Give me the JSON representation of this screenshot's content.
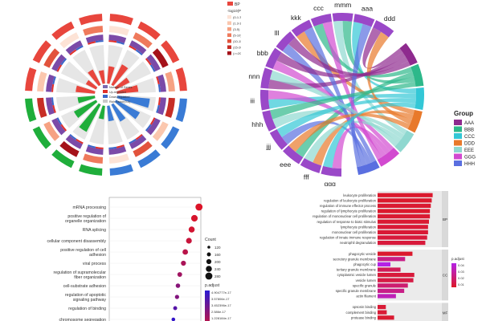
{
  "chart_data": [
    {
      "type": "circos",
      "legend_top": {
        "items": [
          "BP"
        ],
        "colors": [
          "#e8463d"
        ]
      },
      "pvalue_legend": {
        "title": "-log10(Pvalue)",
        "items": [
          "(0-1.3)",
          "(1.3-3)",
          "(3-5)",
          "(5-10)",
          "(10-15)",
          "(15-20)",
          "(>=20)"
        ],
        "colors": [
          "#fde3d6",
          "#fbc7ae",
          "#f6a283",
          "#ef7a5c",
          "#e2533c",
          "#c72e26",
          "#a5121a"
        ]
      },
      "center_legend": {
        "items": [
          "Number of Genes",
          "Up-regulated",
          "Down-regulated",
          "Rich Factor(0-1)"
        ],
        "colors": [
          "#7b68b0",
          "#e0302a",
          "#3a66c8",
          "#c9c9c9"
        ]
      },
      "sectors": [
        {
          "group": "BP",
          "gene_ratio": 0.45
        },
        {
          "group": "BP",
          "gene_ratio": 0.6
        },
        {
          "group": "BP",
          "gene_ratio": 0.4
        },
        {
          "group": "BP",
          "gene_ratio": 0.55
        },
        {
          "group": "CC",
          "gene_ratio": 0.85
        },
        {
          "group": "CC",
          "gene_ratio": 0.7
        },
        {
          "group": "CC",
          "gene_ratio": 0.5
        },
        {
          "group": "CC",
          "gene_ratio": 0.4
        },
        {
          "group": "MF",
          "gene_ratio": 0.35
        },
        {
          "group": "MF",
          "gene_ratio": 0.8
        },
        {
          "group": "MF",
          "gene_ratio": 0.65
        },
        {
          "group": "MF",
          "gene_ratio": 0.45
        },
        {
          "group": "BP",
          "gene_ratio": 0.5
        },
        {
          "group": "BP",
          "gene_ratio": 0.3
        },
        {
          "group": "BP",
          "gene_ratio": 0.45
        },
        {
          "group": "BP",
          "gene_ratio": 0.35
        }
      ],
      "group_colors": {
        "BP": "#e8463d",
        "CC": "#3a7bd5",
        "MF": "#1fae3b"
      }
    },
    {
      "type": "chord",
      "legend_title": "Group",
      "labels": [
        "ddd",
        "aaa",
        "mmm",
        "ccc",
        "kkk",
        "lll",
        "bbb",
        "nnn",
        "iii",
        "hhh",
        "jjj",
        "eee",
        "fff",
        "ggg"
      ],
      "groups": [
        "AAA",
        "BBB",
        "CCC",
        "DDD",
        "EEE",
        "GGG",
        "HHH"
      ],
      "group_colors": [
        "#8e2a8e",
        "#2db88a",
        "#33c7d6",
        "#e8792b",
        "#8fd8d0",
        "#d24ad0",
        "#5a6fe0"
      ],
      "group_sizes": [
        1,
        1,
        1,
        1,
        1,
        1,
        1
      ],
      "label_sizes": [
        1,
        1,
        1,
        1,
        1,
        1,
        1,
        1,
        1,
        1,
        1,
        1,
        1,
        1
      ],
      "ribbons": [
        [
          0,
          0
        ],
        [
          1,
          2
        ],
        [
          2,
          4
        ],
        [
          3,
          1
        ],
        [
          4,
          3
        ],
        [
          5,
          6
        ],
        [
          6,
          5
        ],
        [
          7,
          0
        ],
        [
          8,
          2
        ],
        [
          9,
          4
        ],
        [
          10,
          6
        ],
        [
          11,
          1
        ],
        [
          12,
          3
        ],
        [
          13,
          5
        ],
        [
          0,
          3
        ],
        [
          2,
          1
        ],
        [
          4,
          6
        ],
        [
          6,
          0
        ],
        [
          8,
          5
        ],
        [
          10,
          2
        ],
        [
          12,
          4
        ],
        [
          1,
          6
        ],
        [
          3,
          5
        ],
        [
          5,
          0
        ],
        [
          7,
          4
        ],
        [
          9,
          1
        ],
        [
          11,
          3
        ],
        [
          13,
          2
        ]
      ]
    },
    {
      "type": "scatter",
      "terms": [
        "mRNA processing",
        "positive regulation of organelle organization",
        "RNA splicing",
        "cellular component disassembly",
        "positive regulation of cell adhesion",
        "viral process",
        "regulation of supramolecular fiber organization",
        "cell-substrate adhesion",
        "regulation of apoptotic signaling pathway",
        "regulation of binding",
        "chromosome segregation",
        "RNA splicing, via"
      ],
      "gene_ratio": [
        0.98,
        0.93,
        0.9,
        0.87,
        0.83,
        0.81,
        0.77,
        0.75,
        0.74,
        0.72,
        0.7,
        0.68
      ],
      "count": [
        280,
        260,
        240,
        230,
        220,
        200,
        190,
        180,
        170,
        160,
        150,
        140
      ],
      "p_adjust": [
        1.2e-17,
        1.3e-17,
        1.4e-17,
        1.6e-17,
        1.9e-17,
        2.2e-17,
        2.4e-17,
        2.9e-17,
        3e-17,
        3.9e-17,
        4.6e-17,
        4.8e-17
      ],
      "xlim": [
        0,
        1
      ],
      "size_legend": {
        "title": "Count",
        "values": [
          "120",
          "160",
          "200",
          "240",
          "280"
        ]
      },
      "color_legend": {
        "title": "p.adjust",
        "labels": [
          "4.904777e-17",
          "3.57806e-17",
          "3.452396e-17",
          "2.586e-17",
          "1.228184e-17"
        ]
      }
    },
    {
      "type": "bar",
      "facets": [
        {
          "name": "BP",
          "categories": [
            "leukocyte proliferation",
            "regulation of leukocyte proliferation",
            "regulation of immune effector process",
            "regulation of lymphocyte proliferation",
            "regulation of mononuclear cell proliferation",
            "regulation of response to biotic stimulus",
            "lymphocyte proliferation",
            "mononuclear cell proliferation",
            "regulation of innate immune response",
            "neutrophil degranulation"
          ],
          "values": [
            60,
            59,
            58,
            57,
            57,
            56,
            55,
            55,
            54,
            52
          ],
          "p_adjust": [
            0.001,
            0.001,
            0.002,
            0.001,
            0.002,
            0.002,
            0.003,
            0.003,
            0.004,
            0.004
          ]
        },
        {
          "name": "CC",
          "categories": [
            "phagocytic vesicle",
            "secretory granule membrane",
            "phagocytic cup",
            "tertiary granule membrane",
            "cytoplasmic vesicle lumen",
            "vesicle lumen",
            "specific granule",
            "specific granule membrane",
            "actin filament"
          ],
          "values": [
            38,
            30,
            14,
            25,
            40,
            39,
            33,
            29,
            20
          ],
          "p_adjust": [
            0.001,
            0.02,
            0.042,
            0.01,
            0.004,
            0.006,
            0.015,
            0.02,
            0.03
          ]
        },
        {
          "name": "MF",
          "categories": [
            "opsonin binding",
            "complement binding",
            "protease binding"
          ],
          "values": [
            9,
            10,
            18
          ],
          "p_adjust": [
            0.003,
            0.003,
            0.002
          ]
        }
      ],
      "xlim": [
        0,
        70
      ],
      "color_legend": {
        "title": "p.adjust",
        "labels": [
          "0.04",
          "0.03",
          "0.02",
          "0.01"
        ]
      }
    }
  ]
}
